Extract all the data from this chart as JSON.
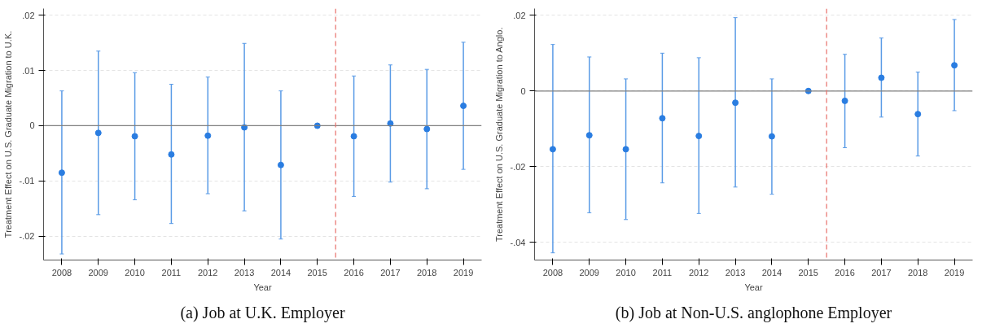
{
  "chart_data": [
    {
      "type": "scatter",
      "title": "(a) Job at U.K. Employer",
      "xlabel": "Year",
      "ylabel": "Treatment Effect on U.S. Graduate Migration to U.K.",
      "x": [
        2008,
        2009,
        2010,
        2011,
        2012,
        2013,
        2014,
        2015,
        2016,
        2017,
        2018,
        2019
      ],
      "series": [
        {
          "color": "#2a7de1",
          "values": [
            -0.0085,
            -0.0013,
            -0.0019,
            -0.0052,
            -0.0018,
            -0.0003,
            -0.0071,
            0,
            -0.0019,
            0.0004,
            -0.0006,
            0.0036
          ],
          "errors": [
            [
              -0.0232,
              0.0063
            ],
            [
              -0.0161,
              0.0135
            ],
            [
              -0.0134,
              0.0096
            ],
            [
              -0.0177,
              0.0075
            ],
            [
              -0.0123,
              0.0088
            ],
            [
              -0.0154,
              0.0149
            ],
            [
              -0.0205,
              0.0063
            ],
            null,
            [
              -0.0128,
              0.009
            ],
            [
              -0.0102,
              0.011
            ],
            [
              -0.0114,
              0.0102
            ],
            [
              -0.0079,
              0.0151
            ]
          ]
        }
      ],
      "xlim": [
        2007.5,
        2019.5
      ],
      "xticks": [
        2008,
        2009,
        2010,
        2011,
        2012,
        2013,
        2014,
        2015,
        2016,
        2017,
        2018,
        2019
      ],
      "ylim": [
        -0.0243,
        0.0212
      ],
      "yticks": [
        {
          "value": -0.02,
          "label": "-.02"
        },
        {
          "value": -0.01,
          "label": "-.01"
        },
        {
          "value": 0,
          "label": "0"
        },
        {
          "value": 0.01,
          "label": ".01"
        },
        {
          "value": 0.02,
          "label": ".02"
        }
      ],
      "ref_lines": [
        {
          "axis": "y",
          "value": 0,
          "color": "#808080",
          "line_style": "solid"
        },
        {
          "axis": "x",
          "value": 2015.5,
          "color": "#e8706a",
          "line_style": "dashed"
        }
      ],
      "grid": "y",
      "marker": "circle"
    },
    {
      "type": "scatter",
      "title": "(b) Job at Non-U.S. anglophone Employer",
      "xlabel": "Year",
      "ylabel": "Treatment Effect on U.S. Graduate Migration to Anglo.",
      "x": [
        2008,
        2009,
        2010,
        2011,
        2012,
        2013,
        2014,
        2015,
        2016,
        2017,
        2018,
        2019
      ],
      "series": [
        {
          "color": "#2a7de1",
          "values": [
            -0.0154,
            -0.0117,
            -0.0154,
            -0.0072,
            -0.0119,
            -0.0031,
            -0.012,
            0,
            -0.0026,
            0.0035,
            -0.0061,
            0.0068
          ],
          "errors": [
            [
              -0.0428,
              0.0123
            ],
            [
              -0.0322,
              0.009
            ],
            [
              -0.034,
              0.0032
            ],
            [
              -0.0243,
              0.01
            ],
            [
              -0.0324,
              0.0088
            ],
            [
              -0.0254,
              0.0194
            ],
            [
              -0.0273,
              0.0032
            ],
            null,
            [
              -0.015,
              0.0097
            ],
            [
              -0.0069,
              0.014
            ],
            [
              -0.0172,
              0.005
            ],
            [
              -0.0052,
              0.0189
            ]
          ]
        }
      ],
      "xlim": [
        2007.5,
        2019.5
      ],
      "xticks": [
        2008,
        2009,
        2010,
        2011,
        2012,
        2013,
        2014,
        2015,
        2016,
        2017,
        2018,
        2019
      ],
      "ylim": [
        -0.0447,
        0.0218
      ],
      "yticks": [
        {
          "value": -0.04,
          "label": "-.04"
        },
        {
          "value": -0.02,
          "label": "-.02"
        },
        {
          "value": 0,
          "label": "0"
        },
        {
          "value": 0.02,
          "label": ".02"
        }
      ],
      "ref_lines": [
        {
          "axis": "y",
          "value": 0,
          "color": "#808080",
          "line_style": "solid"
        },
        {
          "axis": "x",
          "value": 2015.5,
          "color": "#e8706a",
          "line_style": "dashed"
        }
      ],
      "grid": "y",
      "marker": "circle"
    }
  ]
}
